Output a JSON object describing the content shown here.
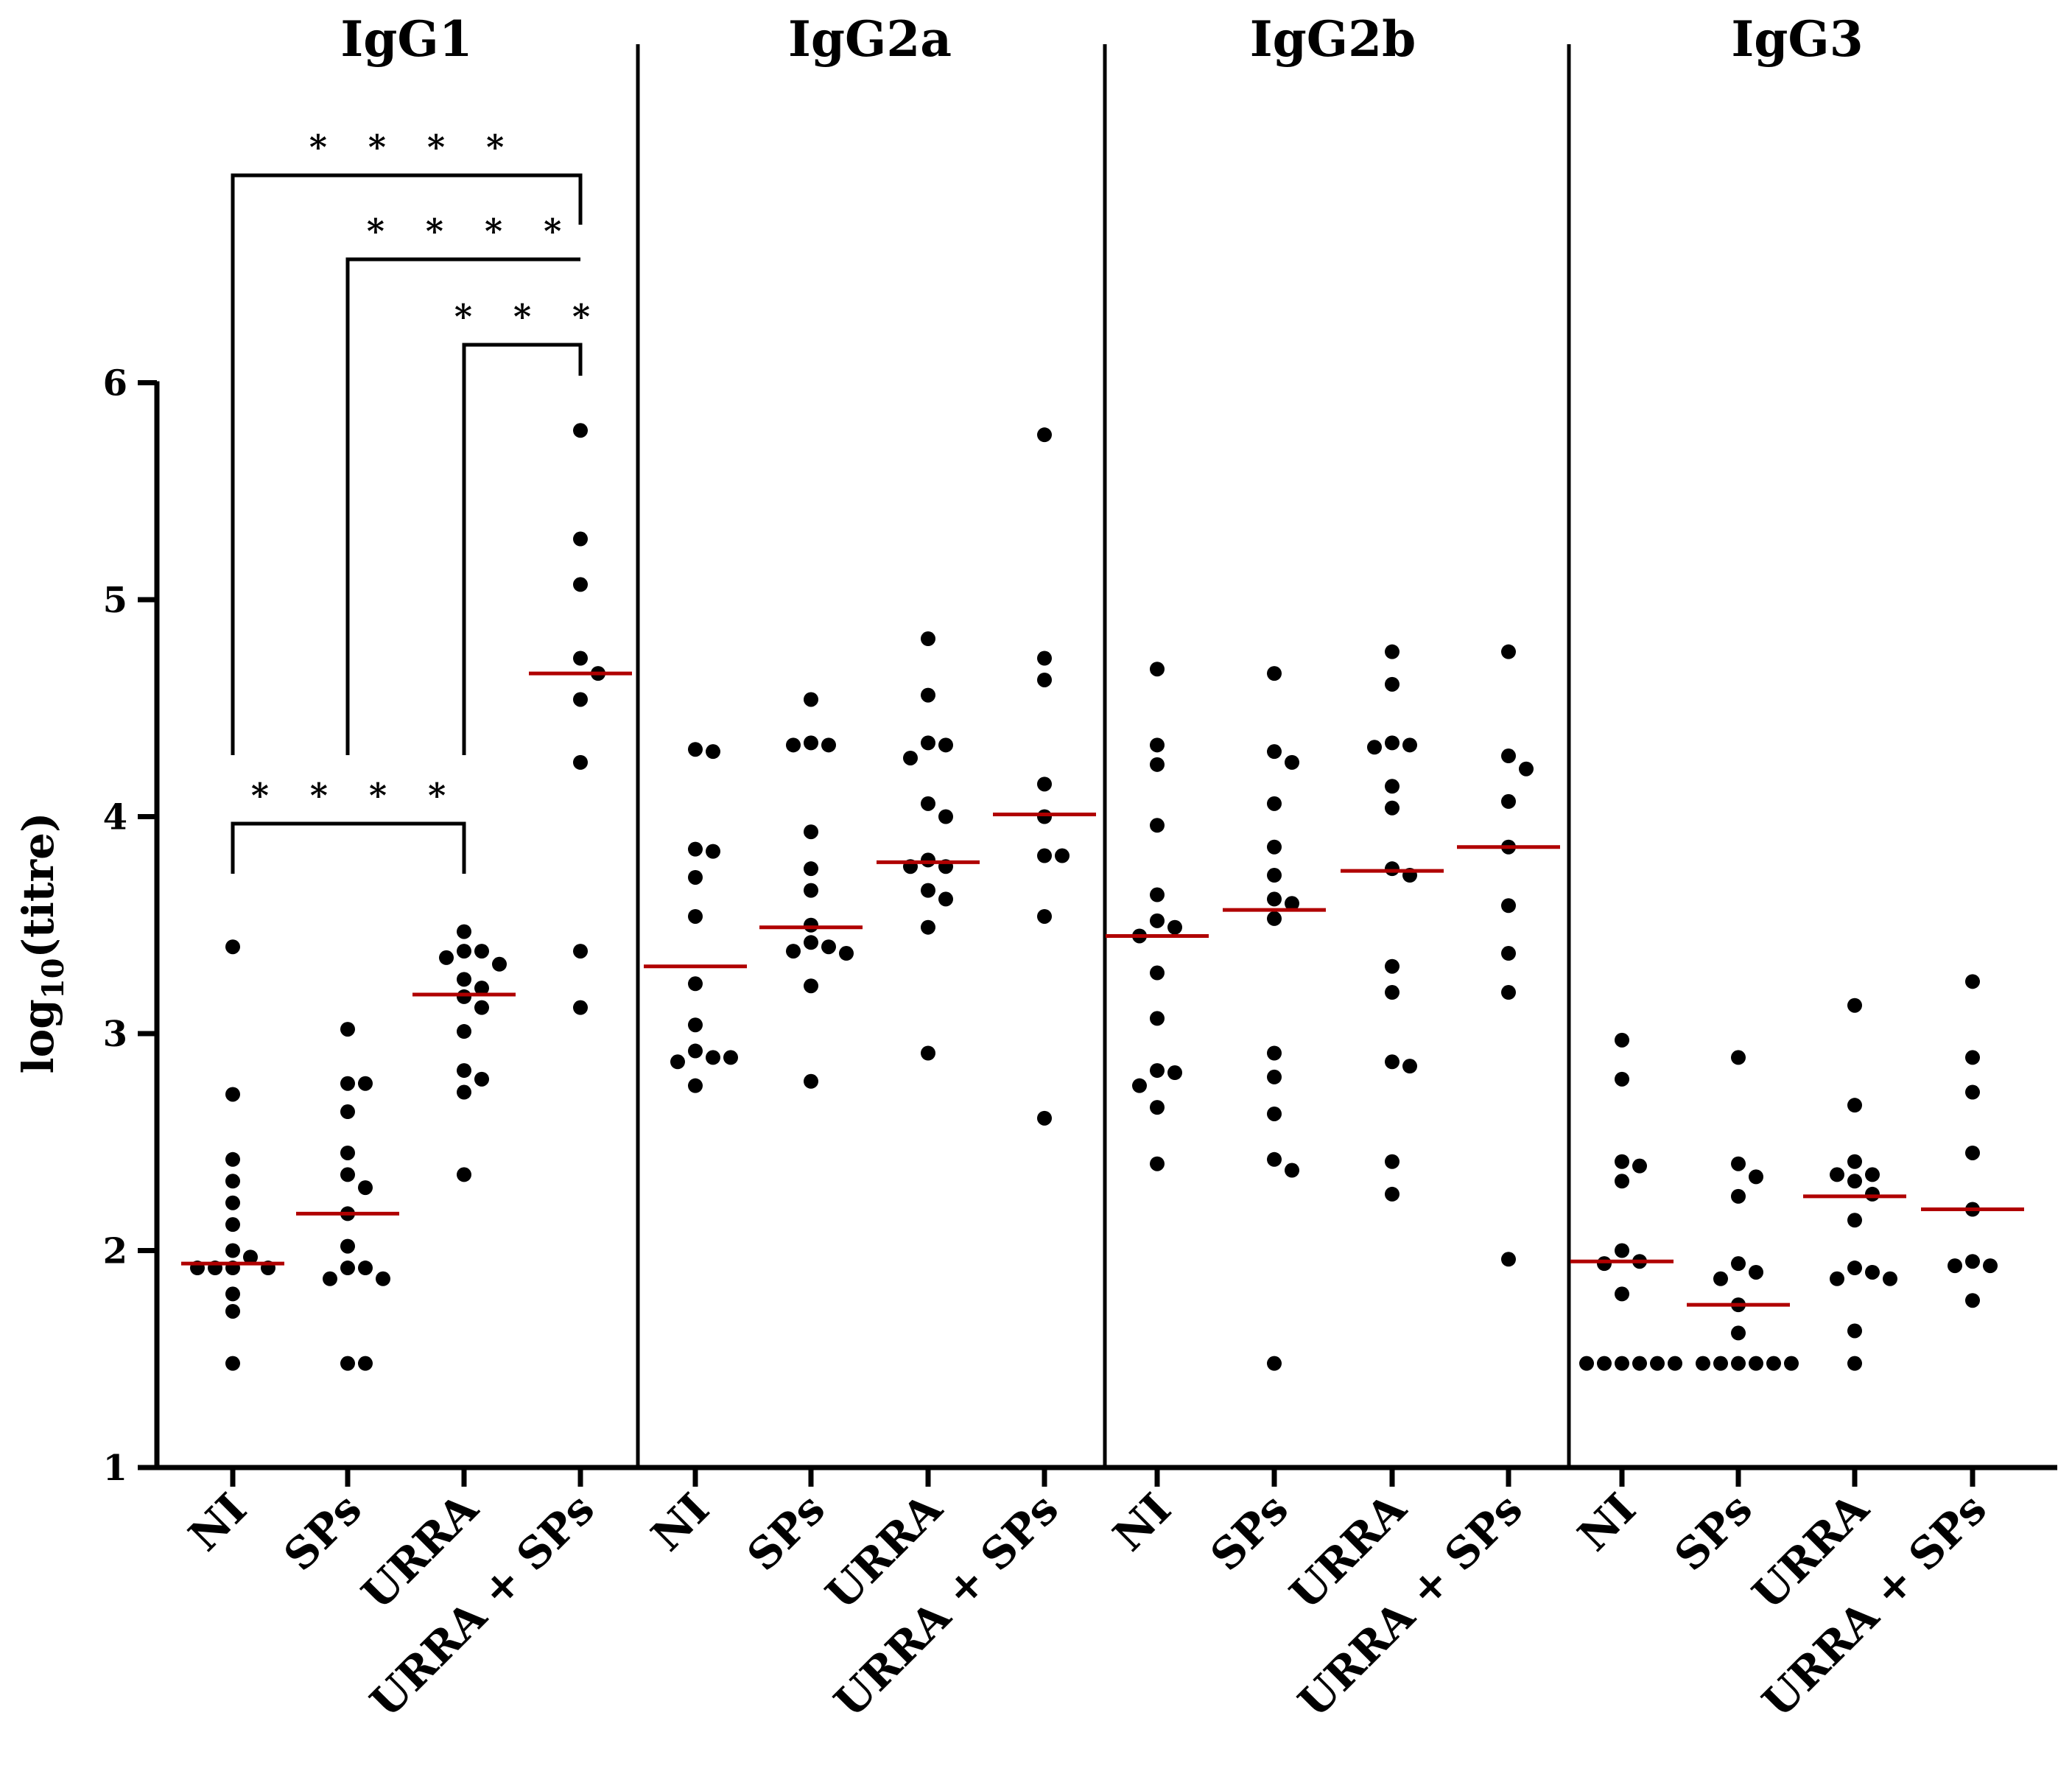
{
  "chart_data": {
    "type": "scatter",
    "ylabel": "log10(titre)",
    "ylabel_base": "log",
    "ylabel_sub": "10",
    "ylabel_tail": "(titre)",
    "ylim": [
      1,
      6
    ],
    "yticks": [
      1,
      2,
      3,
      4,
      5,
      6
    ],
    "categories": [
      "NI",
      "SPs",
      "URRA",
      "URRA + SPs"
    ],
    "median_color": "#b00000",
    "point_color": "#000000",
    "panels": [
      {
        "title": "IgG1",
        "groups": [
          {
            "name": "NI",
            "median": 1.94,
            "values": [
              3.4,
              2.72,
              2.42,
              2.32,
              2.22,
              2.12,
              2.0,
              1.97,
              1.92,
              1.92,
              1.92,
              1.92,
              1.8,
              1.72,
              1.48
            ]
          },
          {
            "name": "SPs",
            "median": 2.17,
            "values": [
              3.02,
              2.77,
              2.77,
              2.64,
              2.45,
              2.35,
              2.29,
              2.17,
              2.02,
              1.92,
              1.92,
              1.87,
              1.87,
              1.48,
              1.48
            ]
          },
          {
            "name": "URRA",
            "median": 3.18,
            "values": [
              3.47,
              3.38,
              3.38,
              3.35,
              3.32,
              3.25,
              3.21,
              3.17,
              3.12,
              3.01,
              2.83,
              2.79,
              2.73,
              2.35
            ]
          },
          {
            "name": "URRA + SPs",
            "median": 4.66,
            "values": [
              5.78,
              5.28,
              5.07,
              4.73,
              4.66,
              4.54,
              4.25,
              3.38,
              3.12
            ]
          }
        ],
        "significance": [
          {
            "from": "NI",
            "to": "URRA + SPs",
            "label": "****"
          },
          {
            "from": "SPs",
            "to": "URRA + SPs",
            "label": "****"
          },
          {
            "from": "URRA",
            "to": "URRA + SPs",
            "label": "***"
          },
          {
            "from": "NI",
            "to": "URRA",
            "label": "****"
          }
        ]
      },
      {
        "title": "IgG2a",
        "groups": [
          {
            "name": "NI",
            "median": 3.31,
            "values": [
              4.31,
              4.3,
              3.85,
              3.84,
              3.72,
              3.54,
              3.23,
              3.04,
              2.92,
              2.89,
              2.87,
              2.89,
              2.76
            ]
          },
          {
            "name": "SPs",
            "median": 3.49,
            "values": [
              4.54,
              4.34,
              4.33,
              4.33,
              3.93,
              3.76,
              3.66,
              3.5,
              3.42,
              3.4,
              3.38,
              3.37,
              3.22,
              2.78
            ]
          },
          {
            "name": "URRA",
            "median": 3.79,
            "values": [
              4.82,
              4.56,
              4.34,
              4.33,
              4.27,
              4.06,
              4.0,
              3.8,
              3.77,
              3.77,
              3.66,
              3.62,
              3.49,
              2.91
            ]
          },
          {
            "name": "URRA + SPs",
            "median": 4.01,
            "values": [
              5.76,
              4.73,
              4.63,
              4.15,
              4.0,
              3.82,
              3.82,
              3.54,
              2.61
            ]
          }
        ]
      },
      {
        "title": "IgG2b",
        "groups": [
          {
            "name": "NI",
            "median": 3.45,
            "values": [
              4.68,
              4.33,
              4.24,
              3.96,
              3.64,
              3.52,
              3.49,
              3.45,
              3.28,
              3.07,
              2.83,
              2.82,
              2.76,
              2.66,
              2.4
            ]
          },
          {
            "name": "SPs",
            "median": 3.57,
            "values": [
              4.66,
              4.3,
              4.25,
              4.06,
              3.86,
              3.73,
              3.62,
              3.6,
              3.53,
              2.91,
              2.8,
              2.63,
              2.42,
              2.37,
              1.48
            ]
          },
          {
            "name": "URRA",
            "median": 3.75,
            "values": [
              4.76,
              4.61,
              4.34,
              4.33,
              4.32,
              4.14,
              4.04,
              3.76,
              3.73,
              3.31,
              3.19,
              2.87,
              2.85,
              2.41,
              2.26
            ]
          },
          {
            "name": "URRA + SPs",
            "median": 3.86,
            "values": [
              4.76,
              4.28,
              4.22,
              4.07,
              3.86,
              3.59,
              3.37,
              3.19,
              1.96
            ]
          }
        ]
      },
      {
        "title": "IgG3",
        "groups": [
          {
            "name": "NI",
            "median": 1.95,
            "values": [
              2.97,
              2.79,
              2.41,
              2.39,
              2.32,
              2.0,
              1.95,
              1.94,
              1.8,
              1.48,
              1.48,
              1.48,
              1.48,
              1.48,
              1.48
            ]
          },
          {
            "name": "SPs",
            "median": 1.75,
            "values": [
              2.89,
              2.4,
              2.34,
              2.25,
              1.94,
              1.9,
              1.87,
              1.75,
              1.62,
              1.48,
              1.48,
              1.48,
              1.48,
              1.48,
              1.48
            ]
          },
          {
            "name": "URRA",
            "median": 2.25,
            "values": [
              3.13,
              2.67,
              2.41,
              2.35,
              2.35,
              2.32,
              2.26,
              2.14,
              1.92,
              1.9,
              1.87,
              1.87,
              1.63,
              1.48
            ]
          },
          {
            "name": "URRA + SPs",
            "median": 2.19,
            "values": [
              3.24,
              2.89,
              2.73,
              2.45,
              2.19,
              1.95,
              1.93,
              1.93,
              1.77
            ]
          }
        ]
      }
    ]
  }
}
